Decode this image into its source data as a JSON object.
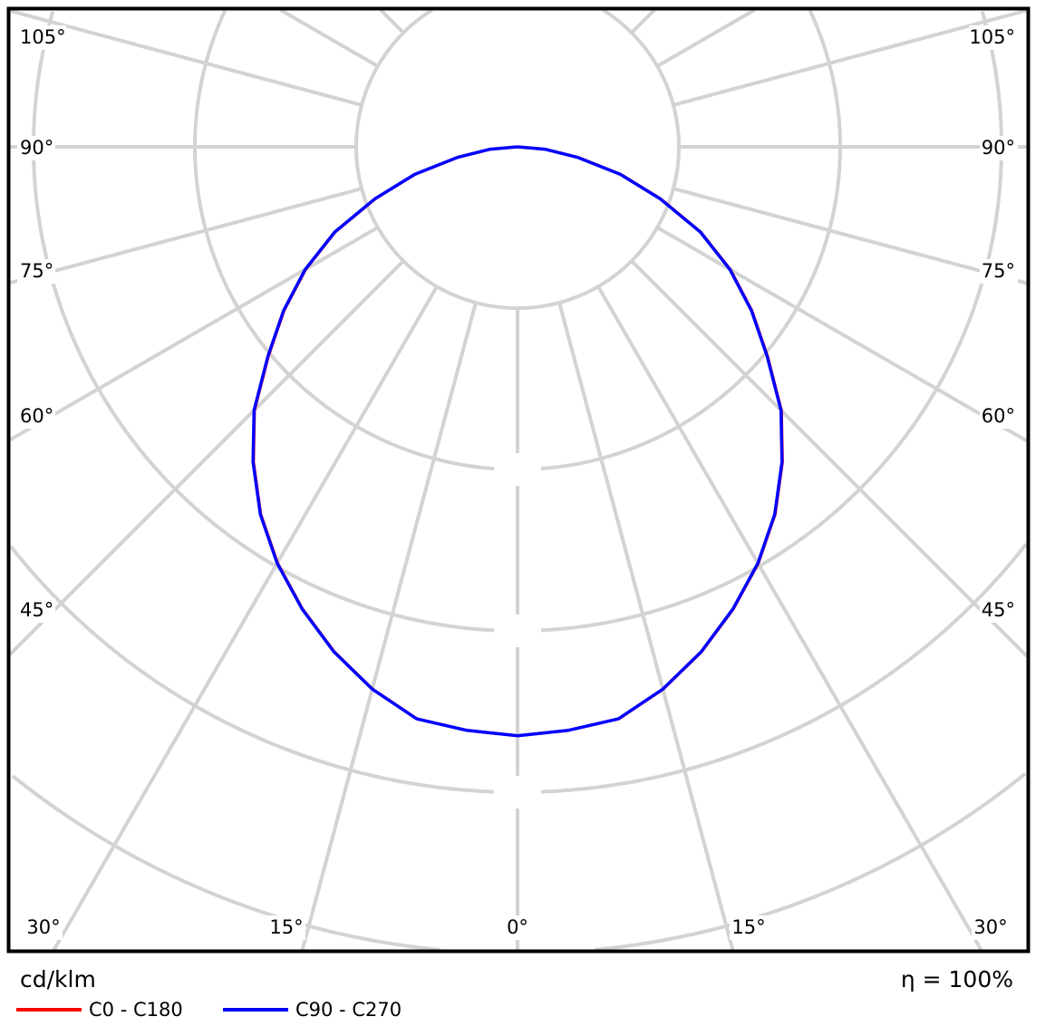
{
  "chart_data": {
    "type": "polar-line",
    "unit_label": "cd/klm",
    "efficiency_label": "η = 100%",
    "angle_labels_left": [
      "105°",
      "90°",
      "75°",
      "60°",
      "45°"
    ],
    "angle_labels_bottom": [
      "30°",
      "15°",
      "0°",
      "15°",
      "30°"
    ],
    "angle_labels_right": [
      "105°",
      "90°",
      "75°",
      "60°",
      "45°"
    ],
    "angle_step_deg": 15,
    "radial_unit": "grid rings",
    "grid": true,
    "angles_deg": [
      0,
      5,
      10,
      15,
      20,
      25,
      30,
      35,
      40,
      45,
      50,
      55,
      60,
      65,
      70,
      75,
      80,
      85,
      90
    ],
    "series": [
      {
        "name": "C0 - C180",
        "color": "#ff0000",
        "values": [
          3.65,
          3.63,
          3.6,
          3.48,
          3.33,
          3.16,
          2.98,
          2.78,
          2.55,
          2.31,
          2.02,
          1.77,
          1.52,
          1.25,
          0.94,
          0.66,
          0.38,
          0.17,
          0
        ]
      },
      {
        "name": "C90 - C270",
        "color": "#0000ff",
        "values": [
          3.65,
          3.63,
          3.6,
          3.48,
          3.33,
          3.16,
          2.98,
          2.78,
          2.55,
          2.31,
          2.02,
          1.77,
          1.52,
          1.25,
          0.94,
          0.66,
          0.38,
          0.17,
          0
        ]
      }
    ],
    "legend": "bottom-left"
  }
}
